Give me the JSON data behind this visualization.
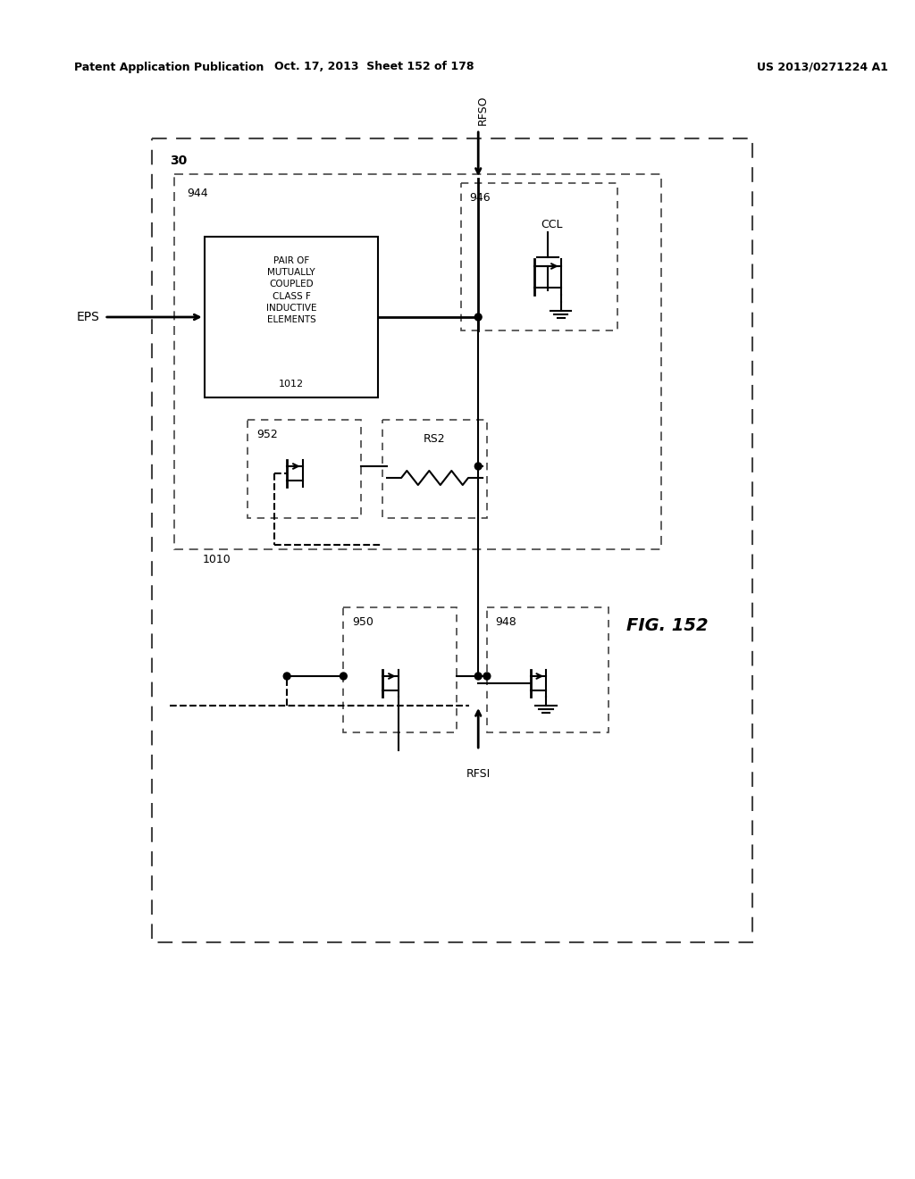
{
  "title_left": "Patent Application Publication",
  "title_center": "Oct. 17, 2013  Sheet 152 of 178",
  "title_right": "US 2013/0271224 A1",
  "fig_label": "FIG. 152",
  "background_color": "#ffffff",
  "line_color": "#000000",
  "dashed_color": "#555555",
  "text_color": "#000000",
  "outer_box_label": "30",
  "inner_box_label": "944",
  "inductor_box_label": "1010",
  "inductor_text": "PAIR OF\nMUTUALLY\nCOUPLED\nCLASS F\nINDUCTIVE\nELEMENTS",
  "inductor_label": "1012",
  "ccl_box_label": "946",
  "ccl_label": "CCL",
  "rfso_label": "RFSO",
  "rfsi_label": "RFSI",
  "eps_label": "EPS",
  "t952_label": "952",
  "rs2_label": "RS2",
  "t950_label": "950",
  "t948_label": "948"
}
